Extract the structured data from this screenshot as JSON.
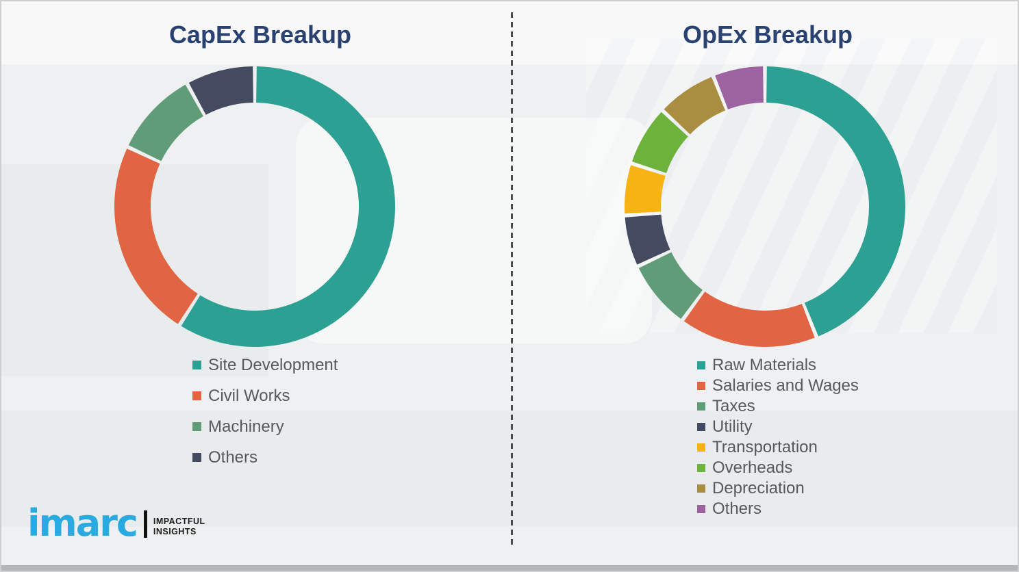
{
  "page": {
    "background": "#EFF0F1",
    "border_color": "#CDCED0"
  },
  "colors": {
    "title": "#2A4271",
    "legend_text": "#58595B",
    "divider": "#4A4A4A",
    "logo_blue": "#29ABE2",
    "logo_black": "#1C1C1C"
  },
  "chart_data": [
    {
      "type": "pie",
      "subtype": "donut",
      "title": "CapEx Breakup",
      "categories": [
        "Site Development",
        "Civil Works",
        "Machinery",
        "Others"
      ],
      "values": [
        59,
        23,
        10,
        8
      ],
      "unit": "percent-estimated-from-arc-angles",
      "colors": [
        "#2CA092",
        "#E16542",
        "#5F9C77",
        "#444A60"
      ],
      "start_angle_deg": 0,
      "direction": "clockwise",
      "inner_radius_ratio": 0.74,
      "legend_position": "below-left",
      "data_labels": false
    },
    {
      "type": "pie",
      "subtype": "donut",
      "title": "OpEx Breakup",
      "categories": [
        "Raw Materials",
        "Salaries and Wages",
        "Taxes",
        "Utility",
        "Transportation",
        "Overheads",
        "Depreciation",
        "Others"
      ],
      "values": [
        44,
        16,
        8,
        6,
        6,
        7,
        7,
        6
      ],
      "unit": "percent-estimated-from-arc-angles",
      "colors": [
        "#2CA092",
        "#E16542",
        "#5F9C77",
        "#444A60",
        "#F6B414",
        "#6DB33B",
        "#A98D40",
        "#9C63A0"
      ],
      "start_angle_deg": 0,
      "direction": "clockwise",
      "inner_radius_ratio": 0.74,
      "legend_position": "below-left",
      "data_labels": false
    }
  ],
  "logo": {
    "brand": "imarc",
    "tagline_line1": "IMPACTFUL",
    "tagline_line2": "INSIGHTS"
  }
}
